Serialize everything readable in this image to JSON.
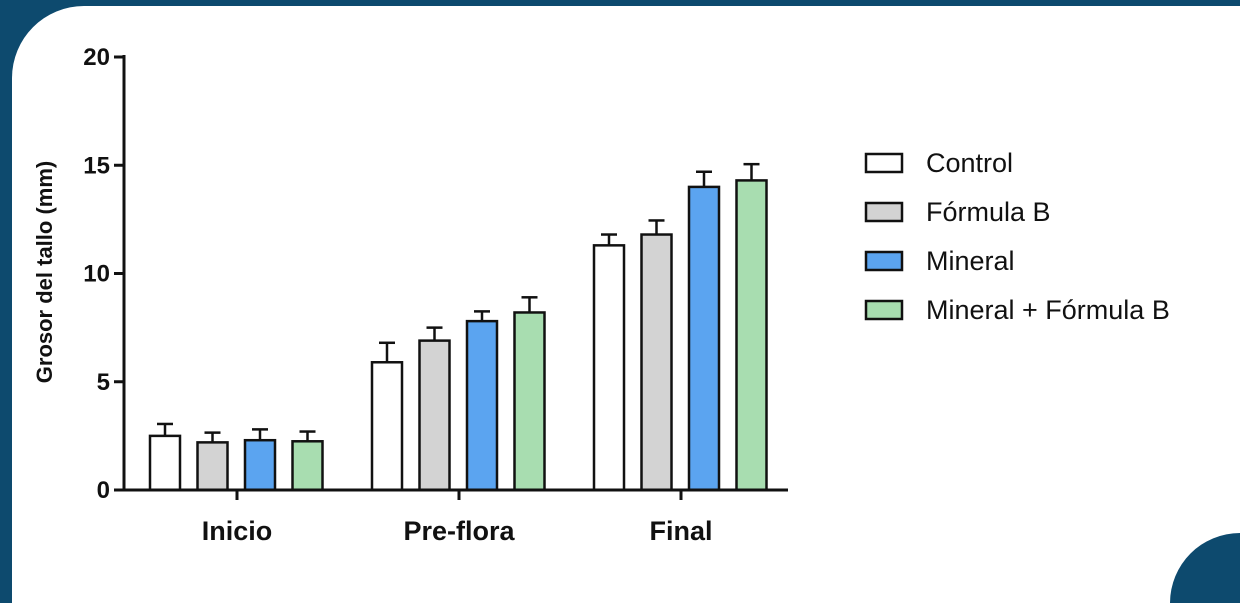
{
  "chart_data": {
    "type": "bar",
    "ylabel": "Grosor del tallo (mm)",
    "xlabel": "",
    "ylim": [
      0,
      20
    ],
    "yticks": [
      0,
      5,
      10,
      15,
      20
    ],
    "ytick_labels": [
      "0",
      "5",
      "10",
      "15",
      "20"
    ],
    "categories": [
      "Inicio",
      "Pre-flora",
      "Final"
    ],
    "legend_position": "right",
    "grid": false,
    "error_bars": true,
    "series": [
      {
        "name": "Control",
        "color": "#ffffff",
        "values": [
          2.5,
          5.9,
          11.3
        ],
        "errors": [
          0.55,
          0.9,
          0.5
        ]
      },
      {
        "name": "Fórmula B",
        "color": "#d3d3d3",
        "values": [
          2.2,
          6.9,
          11.8
        ],
        "errors": [
          0.45,
          0.6,
          0.65
        ]
      },
      {
        "name": "Mineral",
        "color": "#5ba4f0",
        "values": [
          2.3,
          7.8,
          14.0
        ],
        "errors": [
          0.5,
          0.45,
          0.7
        ]
      },
      {
        "name": "Mineral + Fórmula B",
        "color": "#a8ddb0",
        "values": [
          2.25,
          8.2,
          14.3
        ],
        "errors": [
          0.45,
          0.7,
          0.75
        ]
      }
    ]
  }
}
